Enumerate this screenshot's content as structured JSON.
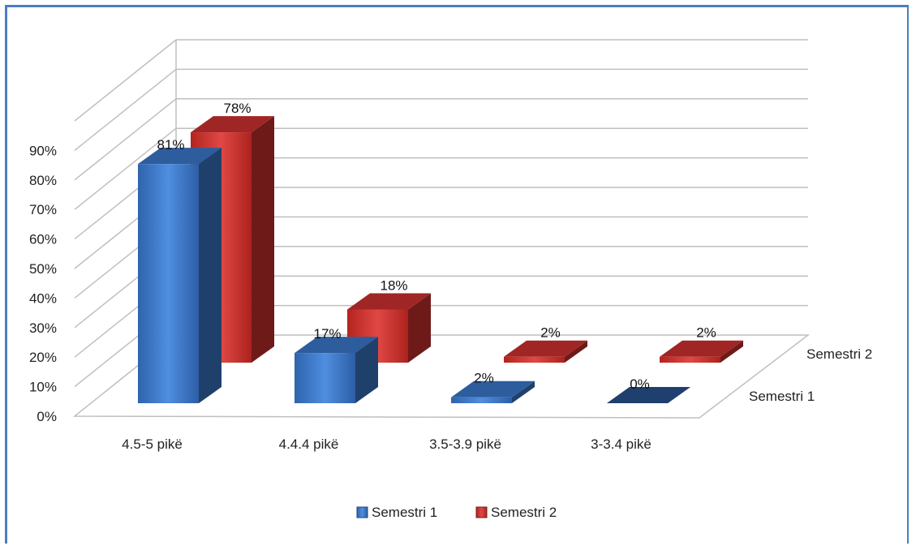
{
  "chart_data": {
    "type": "bar",
    "categories": [
      "4.5-5 pikë",
      "4.4.4 pikë",
      "3.5-3.9 pikë",
      "3-3.4 pikë"
    ],
    "series": [
      {
        "name": "Semestri 1",
        "values": [
          81,
          17,
          2,
          0
        ],
        "labels": [
          "81%",
          "17%",
          "2%",
          "0%"
        ],
        "color": "#3a74c4"
      },
      {
        "name": "Semestri 2",
        "values": [
          78,
          18,
          2,
          2
        ],
        "labels": [
          "78%",
          "18%",
          "2%",
          "2%"
        ],
        "color": "#c8302e"
      }
    ],
    "y_ticks": [
      "0%",
      "10%",
      "20%",
      "30%",
      "40%",
      "50%",
      "60%",
      "70%",
      "80%",
      "90%"
    ],
    "ylim": [
      0,
      90
    ],
    "grid": true,
    "legend_position": "bottom",
    "depth_axis": [
      "Semestri 1",
      "Semestri 2"
    ]
  },
  "colors": {
    "frame": "#4a7ebf",
    "grid": "#bfbfbf"
  }
}
